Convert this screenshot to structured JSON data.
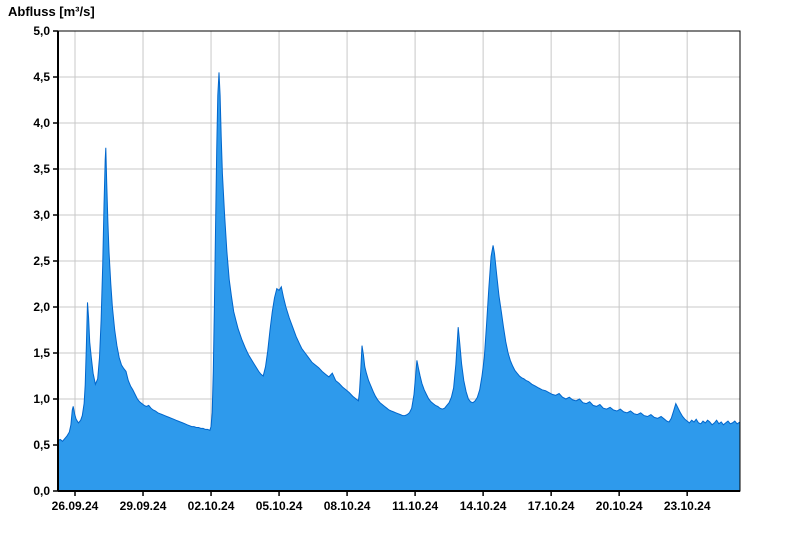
{
  "chart_data": {
    "type": "area",
    "title": "Abfluss [m³/s]",
    "ylabel": "Abfluss [m³/s]",
    "xlabel": "",
    "x_unit": "days since 26.09.24 00:00",
    "x_range": [
      -0.75,
      29.33
    ],
    "y_range": [
      0,
      5
    ],
    "grid": true,
    "legend": "none",
    "colors": {
      "fill": "#2E9AEC",
      "line": "#0066CC",
      "grid": "#C8C8C8",
      "axis": "#000000",
      "background": "#FFFFFF"
    },
    "y_ticks": [
      {
        "value": 0.0,
        "label": "0,0"
      },
      {
        "value": 0.5,
        "label": "0,5"
      },
      {
        "value": 1.0,
        "label": "1,0"
      },
      {
        "value": 1.5,
        "label": "1,5"
      },
      {
        "value": 2.0,
        "label": "2,0"
      },
      {
        "value": 2.5,
        "label": "2,5"
      },
      {
        "value": 3.0,
        "label": "3,0"
      },
      {
        "value": 3.5,
        "label": "3,5"
      },
      {
        "value": 4.0,
        "label": "4,0"
      },
      {
        "value": 4.5,
        "label": "4,5"
      },
      {
        "value": 5.0,
        "label": "5,0"
      }
    ],
    "x_ticks": [
      {
        "value": 0,
        "label": "26.09.24"
      },
      {
        "value": 3,
        "label": "29.09.24"
      },
      {
        "value": 6,
        "label": "02.10.24"
      },
      {
        "value": 9,
        "label": "05.10.24"
      },
      {
        "value": 12,
        "label": "08.10.24"
      },
      {
        "value": 15,
        "label": "11.10.24"
      },
      {
        "value": 18,
        "label": "14.10.24"
      },
      {
        "value": 21,
        "label": "17.10.24"
      },
      {
        "value": 24,
        "label": "20.10.24"
      },
      {
        "value": 27,
        "label": "23.10.24"
      }
    ],
    "series": [
      {
        "name": "Abfluss",
        "points": [
          [
            -0.75,
            0.55
          ],
          [
            -0.65,
            0.56
          ],
          [
            -0.55,
            0.54
          ],
          [
            -0.45,
            0.57
          ],
          [
            -0.35,
            0.6
          ],
          [
            -0.25,
            0.64
          ],
          [
            -0.18,
            0.72
          ],
          [
            -0.12,
            0.88
          ],
          [
            -0.08,
            0.92
          ],
          [
            -0.02,
            0.84
          ],
          [
            0.05,
            0.78
          ],
          [
            0.15,
            0.74
          ],
          [
            0.25,
            0.77
          ],
          [
            0.32,
            0.82
          ],
          [
            0.4,
            0.95
          ],
          [
            0.45,
            1.15
          ],
          [
            0.5,
            1.55
          ],
          [
            0.55,
            2.05
          ],
          [
            0.6,
            1.88
          ],
          [
            0.65,
            1.62
          ],
          [
            0.72,
            1.45
          ],
          [
            0.8,
            1.28
          ],
          [
            0.9,
            1.16
          ],
          [
            1.0,
            1.22
          ],
          [
            1.08,
            1.45
          ],
          [
            1.15,
            1.85
          ],
          [
            1.22,
            2.45
          ],
          [
            1.28,
            3.1
          ],
          [
            1.33,
            3.6
          ],
          [
            1.36,
            3.73
          ],
          [
            1.4,
            3.35
          ],
          [
            1.45,
            2.92
          ],
          [
            1.5,
            2.6
          ],
          [
            1.58,
            2.25
          ],
          [
            1.65,
            2.0
          ],
          [
            1.75,
            1.75
          ],
          [
            1.85,
            1.58
          ],
          [
            1.95,
            1.45
          ],
          [
            2.05,
            1.37
          ],
          [
            2.15,
            1.33
          ],
          [
            2.25,
            1.3
          ],
          [
            2.35,
            1.2
          ],
          [
            2.45,
            1.14
          ],
          [
            2.55,
            1.1
          ],
          [
            2.65,
            1.05
          ],
          [
            2.75,
            1.0
          ],
          [
            2.85,
            0.97
          ],
          [
            2.95,
            0.95
          ],
          [
            3.05,
            0.93
          ],
          [
            3.15,
            0.92
          ],
          [
            3.25,
            0.93
          ],
          [
            3.35,
            0.9
          ],
          [
            3.45,
            0.88
          ],
          [
            3.55,
            0.87
          ],
          [
            3.65,
            0.85
          ],
          [
            3.75,
            0.84
          ],
          [
            3.85,
            0.83
          ],
          [
            3.95,
            0.82
          ],
          [
            4.05,
            0.81
          ],
          [
            4.15,
            0.8
          ],
          [
            4.25,
            0.79
          ],
          [
            4.35,
            0.78
          ],
          [
            4.45,
            0.77
          ],
          [
            4.55,
            0.76
          ],
          [
            4.65,
            0.75
          ],
          [
            4.75,
            0.74
          ],
          [
            4.85,
            0.73
          ],
          [
            4.95,
            0.72
          ],
          [
            5.05,
            0.71
          ],
          [
            5.15,
            0.7
          ],
          [
            5.25,
            0.7
          ],
          [
            5.35,
            0.69
          ],
          [
            5.45,
            0.69
          ],
          [
            5.55,
            0.68
          ],
          [
            5.65,
            0.68
          ],
          [
            5.75,
            0.67
          ],
          [
            5.85,
            0.67
          ],
          [
            5.95,
            0.66
          ],
          [
            6.0,
            0.7
          ],
          [
            6.05,
            0.85
          ],
          [
            6.1,
            1.3
          ],
          [
            6.15,
            2.0
          ],
          [
            6.2,
            2.9
          ],
          [
            6.25,
            3.7
          ],
          [
            6.3,
            4.3
          ],
          [
            6.35,
            4.55
          ],
          [
            6.4,
            4.3
          ],
          [
            6.45,
            3.85
          ],
          [
            6.5,
            3.45
          ],
          [
            6.6,
            3.0
          ],
          [
            6.7,
            2.6
          ],
          [
            6.8,
            2.3
          ],
          [
            6.9,
            2.12
          ],
          [
            7.0,
            1.95
          ],
          [
            7.1,
            1.85
          ],
          [
            7.2,
            1.76
          ],
          [
            7.35,
            1.65
          ],
          [
            7.5,
            1.56
          ],
          [
            7.65,
            1.48
          ],
          [
            7.8,
            1.42
          ],
          [
            7.95,
            1.36
          ],
          [
            8.1,
            1.3
          ],
          [
            8.2,
            1.27
          ],
          [
            8.3,
            1.25
          ],
          [
            8.4,
            1.35
          ],
          [
            8.5,
            1.52
          ],
          [
            8.6,
            1.75
          ],
          [
            8.7,
            1.95
          ],
          [
            8.8,
            2.1
          ],
          [
            8.9,
            2.2
          ],
          [
            9.0,
            2.18
          ],
          [
            9.1,
            2.22
          ],
          [
            9.2,
            2.1
          ],
          [
            9.3,
            2.0
          ],
          [
            9.45,
            1.88
          ],
          [
            9.6,
            1.78
          ],
          [
            9.75,
            1.68
          ],
          [
            9.9,
            1.6
          ],
          [
            10.0,
            1.55
          ],
          [
            10.15,
            1.5
          ],
          [
            10.3,
            1.45
          ],
          [
            10.45,
            1.4
          ],
          [
            10.6,
            1.37
          ],
          [
            10.75,
            1.34
          ],
          [
            10.9,
            1.3
          ],
          [
            11.05,
            1.27
          ],
          [
            11.2,
            1.24
          ],
          [
            11.35,
            1.28
          ],
          [
            11.5,
            1.2
          ],
          [
            11.65,
            1.17
          ],
          [
            11.8,
            1.13
          ],
          [
            11.95,
            1.1
          ],
          [
            12.1,
            1.07
          ],
          [
            12.25,
            1.03
          ],
          [
            12.4,
            1.0
          ],
          [
            12.5,
            0.98
          ],
          [
            12.55,
            1.08
          ],
          [
            12.6,
            1.3
          ],
          [
            12.66,
            1.58
          ],
          [
            12.72,
            1.48
          ],
          [
            12.78,
            1.35
          ],
          [
            12.85,
            1.28
          ],
          [
            12.95,
            1.2
          ],
          [
            13.05,
            1.14
          ],
          [
            13.15,
            1.08
          ],
          [
            13.25,
            1.03
          ],
          [
            13.35,
            0.99
          ],
          [
            13.45,
            0.96
          ],
          [
            13.55,
            0.94
          ],
          [
            13.65,
            0.92
          ],
          [
            13.75,
            0.9
          ],
          [
            13.85,
            0.88
          ],
          [
            13.95,
            0.87
          ],
          [
            14.05,
            0.86
          ],
          [
            14.15,
            0.85
          ],
          [
            14.25,
            0.84
          ],
          [
            14.35,
            0.83
          ],
          [
            14.45,
            0.82
          ],
          [
            14.55,
            0.82
          ],
          [
            14.65,
            0.83
          ],
          [
            14.75,
            0.85
          ],
          [
            14.85,
            0.9
          ],
          [
            14.95,
            1.05
          ],
          [
            15.02,
            1.25
          ],
          [
            15.08,
            1.42
          ],
          [
            15.15,
            1.33
          ],
          [
            15.22,
            1.25
          ],
          [
            15.3,
            1.17
          ],
          [
            15.4,
            1.1
          ],
          [
            15.5,
            1.05
          ],
          [
            15.6,
            1.0
          ],
          [
            15.7,
            0.97
          ],
          [
            15.8,
            0.95
          ],
          [
            15.9,
            0.93
          ],
          [
            16.0,
            0.92
          ],
          [
            16.1,
            0.9
          ],
          [
            16.2,
            0.89
          ],
          [
            16.3,
            0.9
          ],
          [
            16.4,
            0.93
          ],
          [
            16.5,
            0.96
          ],
          [
            16.6,
            1.02
          ],
          [
            16.7,
            1.12
          ],
          [
            16.8,
            1.38
          ],
          [
            16.9,
            1.78
          ],
          [
            16.97,
            1.6
          ],
          [
            17.05,
            1.38
          ],
          [
            17.15,
            1.2
          ],
          [
            17.25,
            1.08
          ],
          [
            17.35,
            1.0
          ],
          [
            17.45,
            0.97
          ],
          [
            17.55,
            0.96
          ],
          [
            17.65,
            0.98
          ],
          [
            17.75,
            1.02
          ],
          [
            17.85,
            1.1
          ],
          [
            17.95,
            1.25
          ],
          [
            18.05,
            1.45
          ],
          [
            18.15,
            1.8
          ],
          [
            18.25,
            2.2
          ],
          [
            18.35,
            2.55
          ],
          [
            18.44,
            2.67
          ],
          [
            18.5,
            2.58
          ],
          [
            18.6,
            2.35
          ],
          [
            18.7,
            2.12
          ],
          [
            18.8,
            1.95
          ],
          [
            18.9,
            1.78
          ],
          [
            19.0,
            1.62
          ],
          [
            19.1,
            1.5
          ],
          [
            19.2,
            1.42
          ],
          [
            19.3,
            1.36
          ],
          [
            19.4,
            1.31
          ],
          [
            19.5,
            1.28
          ],
          [
            19.6,
            1.25
          ],
          [
            19.7,
            1.23
          ],
          [
            19.8,
            1.22
          ],
          [
            19.9,
            1.2
          ],
          [
            20.0,
            1.19
          ],
          [
            20.15,
            1.16
          ],
          [
            20.3,
            1.14
          ],
          [
            20.45,
            1.12
          ],
          [
            20.6,
            1.1
          ],
          [
            20.75,
            1.09
          ],
          [
            20.9,
            1.07
          ],
          [
            21.05,
            1.05
          ],
          [
            21.2,
            1.04
          ],
          [
            21.35,
            1.06
          ],
          [
            21.5,
            1.02
          ],
          [
            21.65,
            1.0
          ],
          [
            21.8,
            1.02
          ],
          [
            21.95,
            0.99
          ],
          [
            22.1,
            0.98
          ],
          [
            22.25,
            1.0
          ],
          [
            22.4,
            0.96
          ],
          [
            22.55,
            0.95
          ],
          [
            22.7,
            0.97
          ],
          [
            22.85,
            0.93
          ],
          [
            23.0,
            0.92
          ],
          [
            23.15,
            0.94
          ],
          [
            23.3,
            0.9
          ],
          [
            23.45,
            0.89
          ],
          [
            23.6,
            0.91
          ],
          [
            23.75,
            0.88
          ],
          [
            23.9,
            0.87
          ],
          [
            24.05,
            0.89
          ],
          [
            24.2,
            0.86
          ],
          [
            24.35,
            0.85
          ],
          [
            24.5,
            0.87
          ],
          [
            24.65,
            0.84
          ],
          [
            24.8,
            0.83
          ],
          [
            24.95,
            0.85
          ],
          [
            25.1,
            0.82
          ],
          [
            25.25,
            0.81
          ],
          [
            25.4,
            0.83
          ],
          [
            25.55,
            0.8
          ],
          [
            25.7,
            0.79
          ],
          [
            25.85,
            0.81
          ],
          [
            26.0,
            0.78
          ],
          [
            26.1,
            0.76
          ],
          [
            26.2,
            0.75
          ],
          [
            26.3,
            0.79
          ],
          [
            26.4,
            0.87
          ],
          [
            26.5,
            0.95
          ],
          [
            26.6,
            0.9
          ],
          [
            26.7,
            0.85
          ],
          [
            26.8,
            0.81
          ],
          [
            26.9,
            0.78
          ],
          [
            27.0,
            0.76
          ],
          [
            27.1,
            0.74
          ],
          [
            27.2,
            0.77
          ],
          [
            27.3,
            0.75
          ],
          [
            27.4,
            0.78
          ],
          [
            27.5,
            0.74
          ],
          [
            27.6,
            0.73
          ],
          [
            27.7,
            0.76
          ],
          [
            27.8,
            0.74
          ],
          [
            27.9,
            0.77
          ],
          [
            28.0,
            0.75
          ],
          [
            28.1,
            0.72
          ],
          [
            28.2,
            0.74
          ],
          [
            28.3,
            0.77
          ],
          [
            28.4,
            0.73
          ],
          [
            28.5,
            0.75
          ],
          [
            28.6,
            0.72
          ],
          [
            28.7,
            0.74
          ],
          [
            28.8,
            0.76
          ],
          [
            28.9,
            0.73
          ],
          [
            29.0,
            0.74
          ],
          [
            29.1,
            0.76
          ],
          [
            29.2,
            0.73
          ],
          [
            29.33,
            0.75
          ]
        ]
      }
    ]
  }
}
